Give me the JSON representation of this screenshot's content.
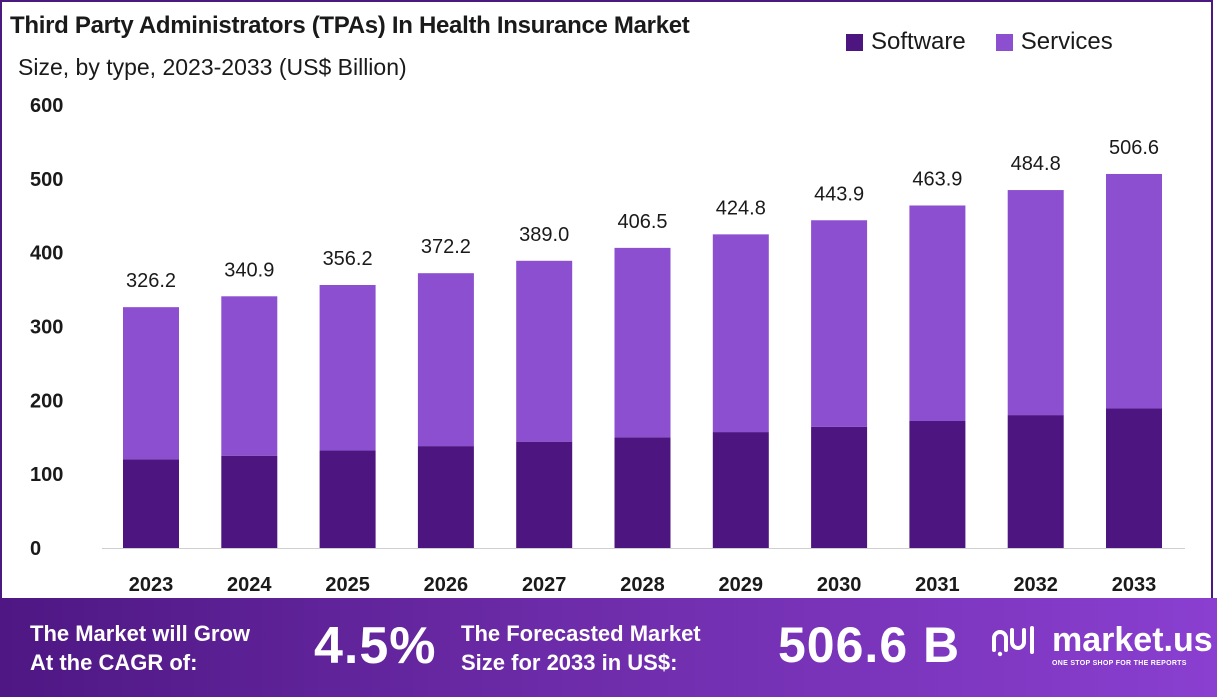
{
  "chart_data": {
    "type": "bar",
    "stacked": true,
    "title": "Third Party Administrators (TPAs) In Health Insurance Market",
    "subtitle": "Size, by type, 2023-2033 (US$ Billion)",
    "categories": [
      "2023",
      "2024",
      "2025",
      "2026",
      "2027",
      "2028",
      "2029",
      "2030",
      "2031",
      "2032",
      "2033"
    ],
    "series": [
      {
        "name": "Software",
        "color": "#4c1580",
        "values": [
          120,
          125,
          132,
          138,
          144,
          150,
          157,
          164,
          172,
          180,
          189
        ]
      },
      {
        "name": "Services",
        "color": "#8b4fd0",
        "values": [
          206.2,
          215.9,
          224.2,
          234.2,
          245.0,
          256.5,
          267.8,
          279.9,
          291.9,
          304.8,
          317.6
        ]
      }
    ],
    "totals": [
      "326.2",
      "340.9",
      "356.2",
      "372.2",
      "389.0",
      "406.5",
      "424.8",
      "443.9",
      "463.9",
      "484.8",
      "506.6"
    ],
    "yticks": [
      "0",
      "100",
      "200",
      "300",
      "400",
      "500",
      "600"
    ],
    "ylim": [
      0,
      600
    ],
    "grid": false,
    "legend_position": "top-right"
  },
  "footer": {
    "cagr_label_line1": "The Market will Grow",
    "cagr_label_line2": "At the CAGR of:",
    "cagr_value": "4.5%",
    "forecast_label_line1": "The Forecasted Market",
    "forecast_label_line2": "Size for 2033 in US$:",
    "forecast_value": "506.6 B",
    "brand_name": "market.us",
    "brand_tagline": "ONE STOP SHOP FOR THE REPORTS",
    "brand_icon": "market-us-logo-icon"
  }
}
